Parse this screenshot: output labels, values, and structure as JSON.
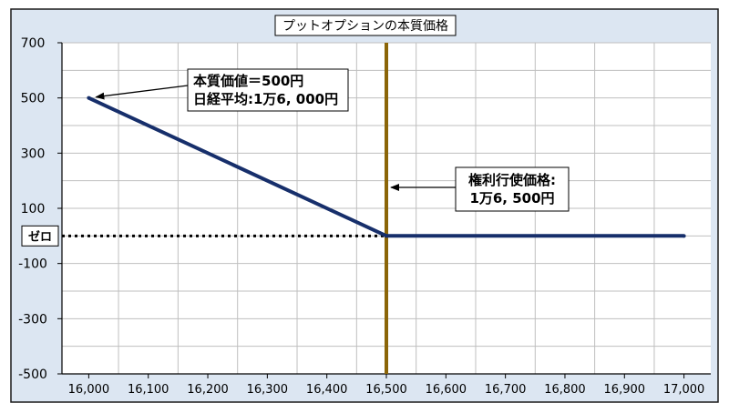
{
  "chart_data": {
    "type": "line",
    "title": "プットオプションの本質価格",
    "xlabel": "",
    "ylabel": "",
    "x_ticks": [
      "16,000",
      "16,100",
      "16,200",
      "16,300",
      "16,400",
      "16,500",
      "16,600",
      "16,700",
      "16,800",
      "16,900",
      "17,000"
    ],
    "y_ticks": [
      "700",
      "500",
      "300",
      "100",
      "-100",
      "-300",
      "-500"
    ],
    "xlim": [
      15955,
      17045
    ],
    "ylim": [
      -500,
      700
    ],
    "grid": true,
    "series": [
      {
        "values_x": [
          16000,
          16500,
          17000
        ],
        "values_y": [
          500,
          0,
          0
        ],
        "color": "#172f6b"
      }
    ],
    "zero_line": {
      "label": "ゼロ",
      "y": 0
    },
    "strike_line": {
      "x": 16500,
      "color": "#8b6508"
    },
    "annotations": [
      {
        "lines": [
          "本質価値＝500円",
          "日経平均:1万6, 000円"
        ],
        "target_x": 16000,
        "target_y": 500
      },
      {
        "lines": [
          "権利行使価格:",
          "1万6, 500円"
        ],
        "target_x": 16500,
        "target_y": 220
      }
    ],
    "colors": {
      "frame_bg": "#dce6f2",
      "plot_bg": "#ffffff",
      "grid": "#bfbfbf",
      "border": "#1a1a1a"
    }
  }
}
